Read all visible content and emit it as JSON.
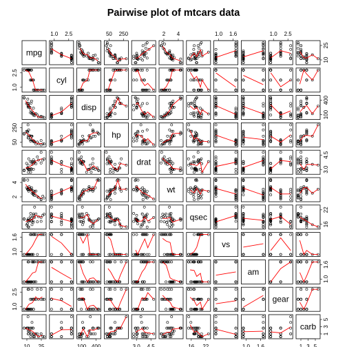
{
  "chart_data": {
    "type": "scatter",
    "title": "Pairwise plot of mtcars data",
    "variables": [
      "mpg",
      "cyl",
      "disp",
      "hp",
      "drat",
      "wt",
      "qsec",
      "vs",
      "am",
      "gear",
      "carb"
    ],
    "smoother_color": "#ff0000",
    "point_color": "#000000",
    "grid": false,
    "top_axis_ticks": {
      "cyl": [
        "1.0",
        "2.5"
      ],
      "hp": [
        "50",
        "250"
      ],
      "wt": [
        "2",
        "4"
      ],
      "vs": [
        "1.0",
        "1.6"
      ],
      "gear": [
        "1.0",
        "2.5"
      ]
    },
    "bottom_axis_ticks": {
      "mpg": [
        "10",
        "25"
      ],
      "disp": [
        "100",
        "400"
      ],
      "drat": [
        "3.0",
        "4.5"
      ],
      "qsec": [
        "16",
        "22"
      ],
      "am": [
        "1.0",
        "1.6"
      ],
      "carb": [
        "1",
        "3",
        "5"
      ]
    },
    "left_axis_ticks": {
      "cyl": [
        "1.0",
        "2.5"
      ],
      "hp": [
        "50",
        "250"
      ],
      "wt": [
        "2",
        "4"
      ],
      "vs": [
        "1.0",
        "1.6"
      ],
      "gear": [
        "1.0",
        "2.5"
      ]
    },
    "right_axis_ticks": {
      "mpg": [
        "10",
        "25"
      ],
      "disp": [
        "100",
        "400"
      ],
      "drat": [
        "3.0",
        "4.5"
      ],
      "qsec": [
        "16",
        "22"
      ],
      "am": [
        "1.0",
        "1.6"
      ],
      "carb": [
        "1",
        "3",
        "5"
      ]
    },
    "data": {
      "mpg": [
        21,
        21,
        22.8,
        21.4,
        18.7,
        18.1,
        14.3,
        24.4,
        22.8,
        19.2,
        17.8,
        16.4,
        17.3,
        15.2,
        10.4,
        10.4,
        14.7,
        32.4,
        30.4,
        33.9,
        21.5,
        15.5,
        15.2,
        13.3,
        19.2,
        27.3,
        26,
        30.4,
        15.8,
        19.7,
        15,
        21.4
      ],
      "cyl": [
        2,
        2,
        1,
        2,
        3,
        2,
        3,
        1,
        1,
        2,
        2,
        3,
        3,
        3,
        3,
        3,
        3,
        1,
        1,
        1,
        1,
        3,
        3,
        3,
        3,
        1,
        1,
        1,
        3,
        2,
        3,
        1
      ],
      "disp": [
        160,
        160,
        108,
        258,
        360,
        225,
        360,
        146.7,
        140.8,
        167.6,
        167.6,
        275.8,
        275.8,
        275.8,
        472,
        460,
        440,
        78.7,
        75.7,
        71.1,
        120.1,
        318,
        304,
        350,
        400,
        79,
        120.3,
        95.1,
        351,
        145,
        301,
        121
      ],
      "hp": [
        110,
        110,
        93,
        110,
        175,
        105,
        245,
        62,
        95,
        123,
        123,
        180,
        180,
        180,
        205,
        215,
        230,
        66,
        52,
        65,
        97,
        150,
        150,
        245,
        175,
        66,
        91,
        113,
        264,
        175,
        335,
        109
      ],
      "drat": [
        3.9,
        3.9,
        3.85,
        3.08,
        3.15,
        2.76,
        3.21,
        3.69,
        3.92,
        3.92,
        3.92,
        3.07,
        3.07,
        3.07,
        2.93,
        3,
        3.23,
        4.08,
        4.93,
        4.22,
        3.7,
        2.76,
        3.15,
        3.73,
        3.08,
        4.08,
        4.43,
        3.77,
        4.22,
        3.62,
        3.54,
        4.11
      ],
      "wt": [
        2.62,
        2.875,
        2.32,
        3.215,
        3.44,
        3.46,
        3.57,
        3.19,
        3.15,
        3.44,
        3.44,
        4.07,
        3.73,
        3.78,
        5.25,
        5.424,
        5.345,
        2.2,
        1.615,
        1.835,
        2.465,
        3.52,
        3.435,
        3.84,
        3.845,
        1.935,
        2.14,
        1.513,
        3.17,
        2.77,
        3.57,
        2.78
      ],
      "qsec": [
        16.46,
        17.02,
        18.61,
        19.44,
        17.02,
        20.22,
        15.84,
        20,
        22.9,
        18.3,
        18.9,
        17.4,
        17.6,
        18,
        17.98,
        17.82,
        17.42,
        19.47,
        18.52,
        19.9,
        20.01,
        16.87,
        17.3,
        15.41,
        17.05,
        18.9,
        16.7,
        16.9,
        14.5,
        15.5,
        14.6,
        18.6
      ],
      "vs": [
        1,
        1,
        2,
        2,
        1,
        2,
        1,
        2,
        2,
        2,
        2,
        1,
        1,
        1,
        1,
        1,
        1,
        2,
        2,
        2,
        2,
        1,
        1,
        1,
        1,
        2,
        1,
        2,
        1,
        1,
        1,
        2
      ],
      "am": [
        2,
        2,
        2,
        1,
        1,
        1,
        1,
        1,
        1,
        1,
        1,
        1,
        1,
        1,
        1,
        1,
        1,
        2,
        2,
        2,
        1,
        1,
        1,
        1,
        1,
        2,
        2,
        2,
        2,
        2,
        2,
        2
      ],
      "gear": [
        2,
        2,
        2,
        1,
        1,
        1,
        1,
        2,
        2,
        2,
        2,
        1,
        1,
        1,
        1,
        1,
        1,
        2,
        2,
        2,
        1,
        1,
        1,
        1,
        1,
        2,
        3,
        3,
        3,
        3,
        3,
        2
      ],
      "carb": [
        4,
        4,
        1,
        1,
        2,
        1,
        4,
        2,
        2,
        4,
        4,
        3,
        3,
        3,
        4,
        4,
        4,
        1,
        2,
        1,
        1,
        2,
        2,
        4,
        2,
        1,
        2,
        2,
        4,
        6,
        8,
        2
      ]
    }
  }
}
